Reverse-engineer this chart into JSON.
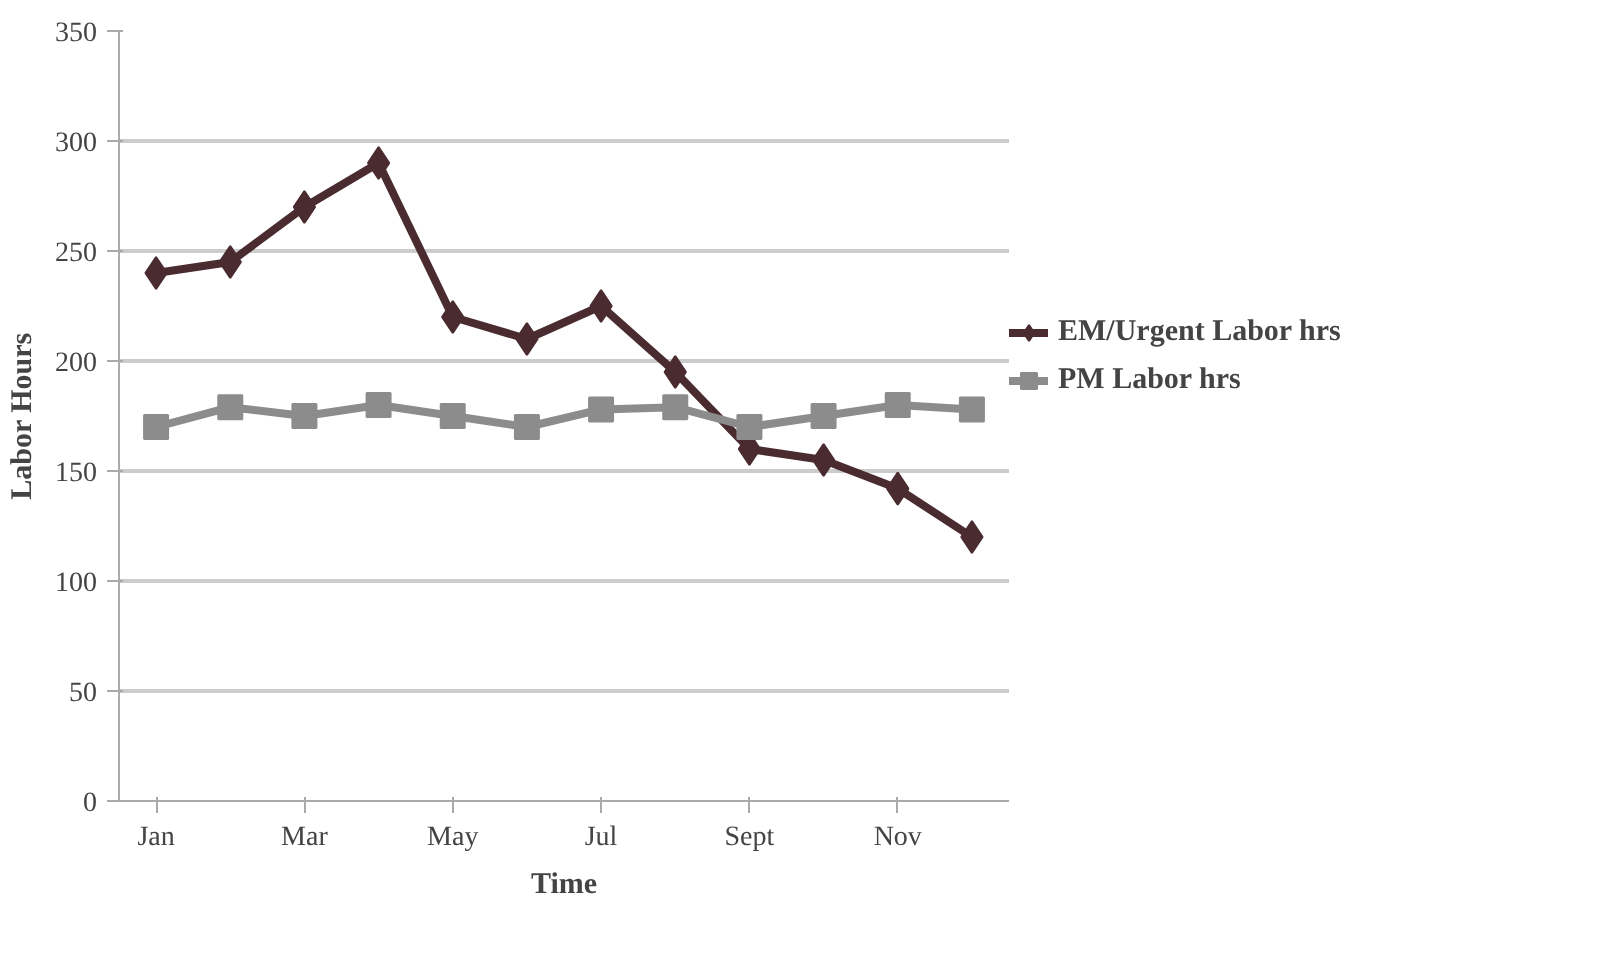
{
  "chart_data": {
    "type": "line",
    "xlabel": "Time",
    "ylabel": "Labor Hours",
    "categories": [
      "Jan",
      null,
      "Mar",
      null,
      "May",
      null,
      "Jul",
      null,
      "Sept",
      null,
      "Nov",
      null
    ],
    "series": [
      {
        "name": "EM/Urgent Labor hrs",
        "color": "#4a2c30",
        "marker": "diamond",
        "values": [
          240,
          245,
          270,
          290,
          220,
          210,
          225,
          195,
          160,
          155,
          142,
          120
        ]
      },
      {
        "name": "PM Labor hrs",
        "color": "#8c8c8c",
        "marker": "square",
        "values": [
          170,
          179,
          175,
          180,
          175,
          170,
          178,
          179,
          170,
          175,
          180,
          178
        ]
      }
    ],
    "ylim": [
      0,
      350
    ],
    "yticks": [
      0,
      50,
      100,
      150,
      200,
      250,
      300,
      350
    ],
    "grid": "y",
    "legend": "right"
  }
}
